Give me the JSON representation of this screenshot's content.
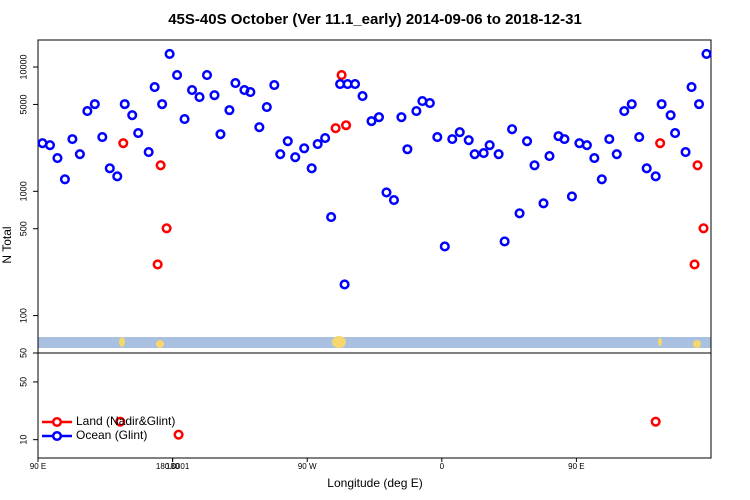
{
  "chart_data": [
    {
      "type": "scatter",
      "title": "45S-40S October (Ver 11.1_early)   2014-09-06 to 2018-12-31",
      "ylabel": "N Total",
      "log_y": true,
      "xlim": [
        90,
        540
      ],
      "ylim": [
        50,
        16500
      ],
      "yticks": [
        50,
        100,
        500,
        1000,
        5000,
        10000
      ],
      "series": [
        {
          "name": "Land (Nadir&Glint)",
          "color": "#ff0000",
          "x": [
            147,
            172,
            176,
            170,
            289,
            293,
            296,
            506,
            531,
            535,
            529
          ],
          "values": [
            2440,
            1620,
            504,
            258,
            3220,
            8610,
            3400,
            2440,
            1620,
            504,
            258
          ]
        },
        {
          "name": "Ocean (Glint)",
          "color": "#0000ff",
          "x": [
            93,
            98,
            103,
            108,
            113,
            118,
            123,
            128,
            133,
            138,
            143,
            148,
            153,
            157,
            164,
            168,
            173,
            178,
            183,
            188,
            193,
            198,
            203,
            208,
            212,
            218,
            222,
            228,
            232,
            238,
            243,
            248,
            252,
            257,
            262,
            268,
            273,
            277,
            282,
            286,
            292,
            295,
            297,
            302,
            307,
            313,
            318,
            323,
            328,
            333,
            337,
            343,
            347,
            352,
            357,
            362,
            367,
            372,
            378,
            382,
            388,
            392,
            398,
            402,
            407,
            412,
            417,
            422,
            428,
            432,
            438,
            442,
            447,
            452,
            457,
            462,
            467,
            472,
            477,
            482,
            487,
            492,
            497,
            503,
            507,
            513,
            516,
            523,
            527,
            532,
            537
          ],
          "values": [
            2440,
            2350,
            1850,
            1250,
            2630,
            1990,
            4420,
            5030,
            2730,
            1530,
            1320,
            5030,
            4100,
            2940,
            2070,
            6900,
            5030,
            12740,
            8610,
            3810,
            6530,
            5730,
            8610,
            5940,
            2880,
            4500,
            7430,
            6530,
            6290,
            3280,
            4760,
            7160,
            1990,
            2530,
            1880,
            2220,
            1530,
            2400,
            2680,
            620,
            7300,
            178,
            7300,
            7300,
            5840,
            3670,
            3950,
            980,
            850,
            3950,
            2180,
            4420,
            5320,
            5130,
            2730,
            360,
            2630,
            2990,
            2580,
            1990,
            2030,
            2350,
            1990,
            395,
            3160,
            665,
            2530,
            1620,
            800,
            1920,
            2780,
            2630,
            910,
            2440,
            2350,
            1850,
            1250,
            2630,
            1990,
            4420,
            5030,
            2730,
            1530,
            1320,
            5030,
            4100,
            2940,
            2070,
            6900,
            5030,
            12740
          ]
        }
      ]
    },
    {
      "type": "scatter",
      "xlabel": "Longitude (deg E)",
      "log_y": true,
      "xlim": [
        90,
        540
      ],
      "ylim": [
        6,
        112
      ],
      "xticks": [
        {
          "value": 90,
          "label": "90 E"
        },
        180,
        {
          "value": 270,
          "label": "90 W"
        },
        {
          "value": 360,
          "label": "0"
        },
        {
          "value": 450,
          "label": "90 E"
        },
        180.0001
      ],
      "yticks": [
        10,
        50
      ],
      "legend": "lower left",
      "series": [
        {
          "color": "#ff0000",
          "x": [
            145,
            184,
            503
          ],
          "values": [
            16.5,
            11.5,
            16.5
          ]
        }
      ]
    }
  ]
}
